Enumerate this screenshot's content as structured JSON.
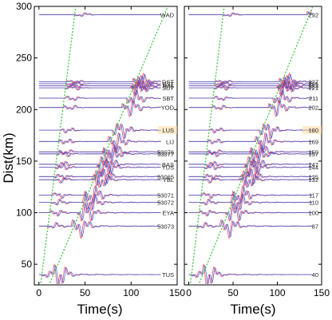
{
  "chart_data": {
    "type": "line",
    "ylabel": "Dist(km)",
    "xlabel": "Time(s)",
    "ylim": [
      30,
      300
    ],
    "xlim": [
      -5,
      150
    ],
    "y_ticks": [
      50,
      100,
      150,
      200,
      250,
      300
    ],
    "x_ticks": [
      0,
      50,
      100,
      150
    ],
    "grid": false,
    "series_colors": {
      "observed": "#e8334a",
      "synthetic": "#2d4fd6",
      "phase_lines": "#3cc83c"
    },
    "phase_lines": [
      {
        "name": "P",
        "from": [
          2,
          32
        ],
        "to": [
          40,
          300
        ]
      },
      {
        "name": "S",
        "from": [
          12,
          32
        ],
        "to": [
          140,
          300
        ]
      }
    ],
    "panels": [
      {
        "name": "left",
        "traces": [
          {
            "label": "WAD",
            "dist": 292
          },
          {
            "label": "DST",
            "dist": 227
          },
          {
            "label": "BST",
            "dist": 225
          },
          {
            "label": "IMS",
            "dist": 223
          },
          {
            "label": "SUT",
            "dist": 221
          },
          {
            "label": "SBT",
            "dist": 211
          },
          {
            "label": "YOD",
            "dist": 202
          },
          {
            "label": "LUS",
            "dist": 180
          },
          {
            "label": "LIJ",
            "dist": 169
          },
          {
            "label": "53076",
            "dist": 159
          },
          {
            "label": "53077",
            "dist": 157
          },
          {
            "label": "BAS",
            "dist": 147
          },
          {
            "label": "YUS",
            "dist": 144
          },
          {
            "label": "53065",
            "dist": 135
          },
          {
            "label": "YBL",
            "dist": 132
          },
          {
            "label": "53071",
            "dist": 117
          },
          {
            "label": "53072",
            "dist": 110
          },
          {
            "label": "EYA",
            "dist": 100
          },
          {
            "label": "53073",
            "dist": 87
          },
          {
            "label": "TUS",
            "dist": 40
          }
        ]
      },
      {
        "name": "right",
        "traces": [
          {
            "label": "292",
            "dist": 292
          },
          {
            "label": "227",
            "dist": 227
          },
          {
            "label": "225",
            "dist": 225
          },
          {
            "label": "223",
            "dist": 223
          },
          {
            "label": "221",
            "dist": 221
          },
          {
            "label": "211",
            "dist": 211
          },
          {
            "label": "202",
            "dist": 202
          },
          {
            "label": "180",
            "dist": 180
          },
          {
            "label": "169",
            "dist": 169
          },
          {
            "label": "159",
            "dist": 159
          },
          {
            "label": "157",
            "dist": 157
          },
          {
            "label": "147",
            "dist": 147
          },
          {
            "label": "144",
            "dist": 144
          },
          {
            "label": "135",
            "dist": 135
          },
          {
            "label": "132",
            "dist": 132
          },
          {
            "label": "117",
            "dist": 117
          },
          {
            "label": "110",
            "dist": 110
          },
          {
            "label": "100",
            "dist": 100
          },
          {
            "label": "87",
            "dist": 87
          },
          {
            "label": "40",
            "dist": 40
          }
        ]
      }
    ]
  }
}
